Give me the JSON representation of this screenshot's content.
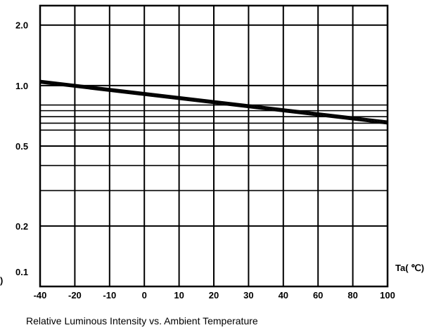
{
  "chart_data": {
    "type": "line",
    "title": "",
    "caption": "Relative Luminous Intensity vs. Ambient Temperature",
    "xlabel": "Ta( ℃)",
    "ylabel_fragment": ")",
    "x_ticks": [
      "-40",
      "-20",
      "-10",
      "0",
      "10",
      "20",
      "30",
      "40",
      "60",
      "80",
      "100"
    ],
    "y_ticks": [
      {
        "value": 2.0,
        "label": "2.0"
      },
      {
        "value": 1.0,
        "label": "1.0"
      },
      {
        "value": 0.5,
        "label": "0.5"
      },
      {
        "value": 0.2,
        "label": "0.2"
      },
      {
        "value": 0.1,
        "label": "0.1"
      }
    ],
    "y_scale": "log",
    "ylim": [
      0.1,
      2.5
    ],
    "y_minor_grid": [
      0.3,
      0.4,
      0.6,
      0.65,
      0.7,
      0.75,
      0.8
    ],
    "grid": true,
    "series": [
      {
        "x": [
          -40,
          100
        ],
        "y": [
          1.03,
          0.645
        ]
      },
      {
        "x": [
          -40,
          100
        ],
        "y": [
          1.045,
          0.655
        ]
      },
      {
        "x": [
          -40,
          100
        ],
        "y": [
          1.06,
          0.665
        ]
      }
    ],
    "line_color": "#000000",
    "grid_color": "#000000"
  }
}
